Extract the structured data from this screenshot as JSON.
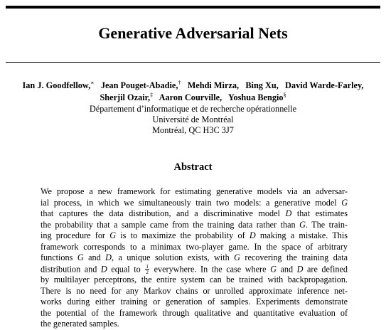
{
  "paper": {
    "title": "Generative Adversarial Nets",
    "authors": [
      {
        "name": "Ian J. Goodfellow,",
        "mark": "∗"
      },
      {
        "name": "Jean Pouget-Abadie,",
        "mark": "†"
      },
      {
        "name": "Mehdi Mirza,",
        "mark": ""
      },
      {
        "name": "Bing Xu,",
        "mark": ""
      },
      {
        "name": "David Warde-Farley,",
        "mark": ""
      },
      {
        "name": "Sherjil Ozair,",
        "mark": "‡"
      },
      {
        "name": "Aaron Courville,",
        "mark": ""
      },
      {
        "name": "Yoshua Bengio",
        "mark": "§"
      }
    ],
    "affiliation": [
      "Département d’informatique et de recherche opérationnelle",
      "Université de Montréal",
      "Montréal, QC H3C 3J7"
    ],
    "abstract_heading": "Abstract",
    "abstract_lines": [
      [
        {
          "t": "We propose a new framework for estimating generative models via an adversar-"
        }
      ],
      [
        {
          "t": "ial process, in which we simultaneously train two models: a generative model "
        },
        {
          "t": "G",
          "i": true
        }
      ],
      [
        {
          "t": "that captures the data distribution, and a discriminative model "
        },
        {
          "t": "D",
          "i": true
        },
        {
          "t": " that estimates"
        }
      ],
      [
        {
          "t": "the probability that a sample came from the training data rather than "
        },
        {
          "t": "G",
          "i": true
        },
        {
          "t": ". The train-"
        }
      ],
      [
        {
          "t": "ing procedure for "
        },
        {
          "t": "G",
          "i": true
        },
        {
          "t": " is to maximize the probability of "
        },
        {
          "t": "D",
          "i": true
        },
        {
          "t": " making a mistake. This"
        }
      ],
      [
        {
          "t": "framework corresponds to a minimax two-player game. In the space of arbitrary"
        }
      ],
      [
        {
          "t": "functions "
        },
        {
          "t": "G",
          "i": true
        },
        {
          "t": " and "
        },
        {
          "t": "D",
          "i": true
        },
        {
          "t": ", a unique solution exists, with "
        },
        {
          "t": "G",
          "i": true
        },
        {
          "t": " recovering the training data"
        }
      ],
      [
        {
          "t": "distribution and "
        },
        {
          "t": "D",
          "i": true
        },
        {
          "t": " equal to "
        },
        {
          "frac": [
            "1",
            "2"
          ]
        },
        {
          "t": " everywhere. In the case where "
        },
        {
          "t": "G",
          "i": true
        },
        {
          "t": " and "
        },
        {
          "t": "D",
          "i": true
        },
        {
          "t": " are defined"
        }
      ],
      [
        {
          "t": "by multilayer perceptrons, the entire system can be trained with backpropagation."
        }
      ],
      [
        {
          "t": "There is no need for any Markov chains or unrolled approximate inference net-"
        }
      ],
      [
        {
          "t": "works during either training or generation of samples. Experiments demonstrate"
        }
      ],
      [
        {
          "t": "the potential of the framework through qualitative and quantitative evaluation of"
        }
      ],
      [
        {
          "t": "the generated samples."
        }
      ]
    ]
  }
}
